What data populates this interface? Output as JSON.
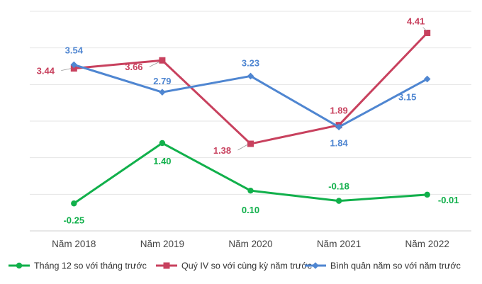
{
  "chart_data": {
    "type": "line",
    "categories": [
      "Năm 2018",
      "Năm 2019",
      "Năm 2020",
      "Năm 2021",
      "Năm 2022"
    ],
    "ylim": [
      -1,
      5
    ],
    "grid": true,
    "legend_position": "bottom",
    "series": [
      {
        "name": "Tháng 12 so với tháng trước",
        "values": [
          -0.25,
          1.4,
          0.1,
          -0.18,
          -0.01
        ],
        "labels": [
          "-0.25",
          "1.40",
          "0.10",
          "-0.18",
          "-0.01"
        ],
        "color": "#11b04b",
        "marker": "circle"
      },
      {
        "name": "Quý IV so với cùng kỳ năm trước",
        "values": [
          3.44,
          3.66,
          1.38,
          1.89,
          4.41
        ],
        "labels": [
          "3.44",
          "3.66",
          "1.38",
          "1.89",
          "4.41"
        ],
        "color": "#c8415e",
        "marker": "square"
      },
      {
        "name": "Bình quân năm so với năm trước",
        "values": [
          3.54,
          2.79,
          3.23,
          1.84,
          3.15
        ],
        "labels": [
          "3.54",
          "2.79",
          "3.23",
          "1.84",
          "3.15"
        ],
        "color": "#4f86d1",
        "marker": "diamond"
      }
    ]
  }
}
